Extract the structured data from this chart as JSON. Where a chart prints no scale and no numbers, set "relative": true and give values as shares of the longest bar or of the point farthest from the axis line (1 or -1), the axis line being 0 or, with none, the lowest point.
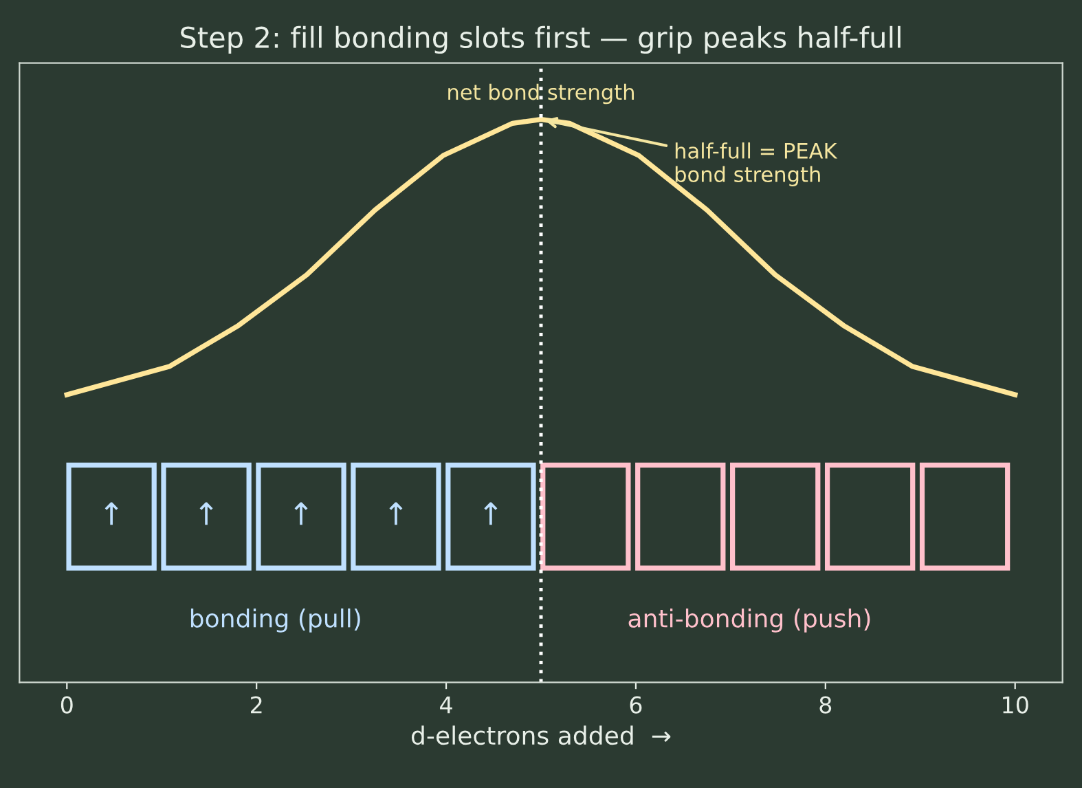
{
  "chart_data": {
    "type": "line",
    "title": "Step 2: fill bonding slots first — grip peaks half-full",
    "xlabel": "d-electrons added  →",
    "relative": true,
    "xlim": [
      -0.5,
      10.5
    ],
    "xticks": [
      0,
      2,
      4,
      6,
      8,
      10
    ],
    "grid": false,
    "legend": false,
    "marker": "none",
    "line_style": "solid",
    "series": [
      {
        "name": "net bond strength",
        "color": "#ffe699",
        "x": [
          0,
          1.08,
          1.81,
          2.53,
          3.25,
          3.97,
          4.7,
          5,
          5.3,
          6.03,
          6.75,
          7.47,
          8.19,
          8.92,
          10
        ],
        "values": [
          0.511,
          0.561,
          0.634,
          0.724,
          0.839,
          0.936,
          0.993,
          1,
          0.993,
          0.936,
          0.839,
          0.724,
          0.634,
          0.561,
          0.511
        ]
      }
    ],
    "ref_lines": [
      {
        "axis": "x",
        "value": 5,
        "label": null,
        "color": "#ffffff",
        "line_style": "dotted"
      }
    ],
    "annotations": [
      {
        "text": "half-full = PEAK\nbond strength",
        "x": 5,
        "y": 1
      },
      "bonding (pull)",
      "anti-bonding (push)",
      "↑",
      "↑",
      "↑",
      "↑",
      "↑"
    ]
  }
}
